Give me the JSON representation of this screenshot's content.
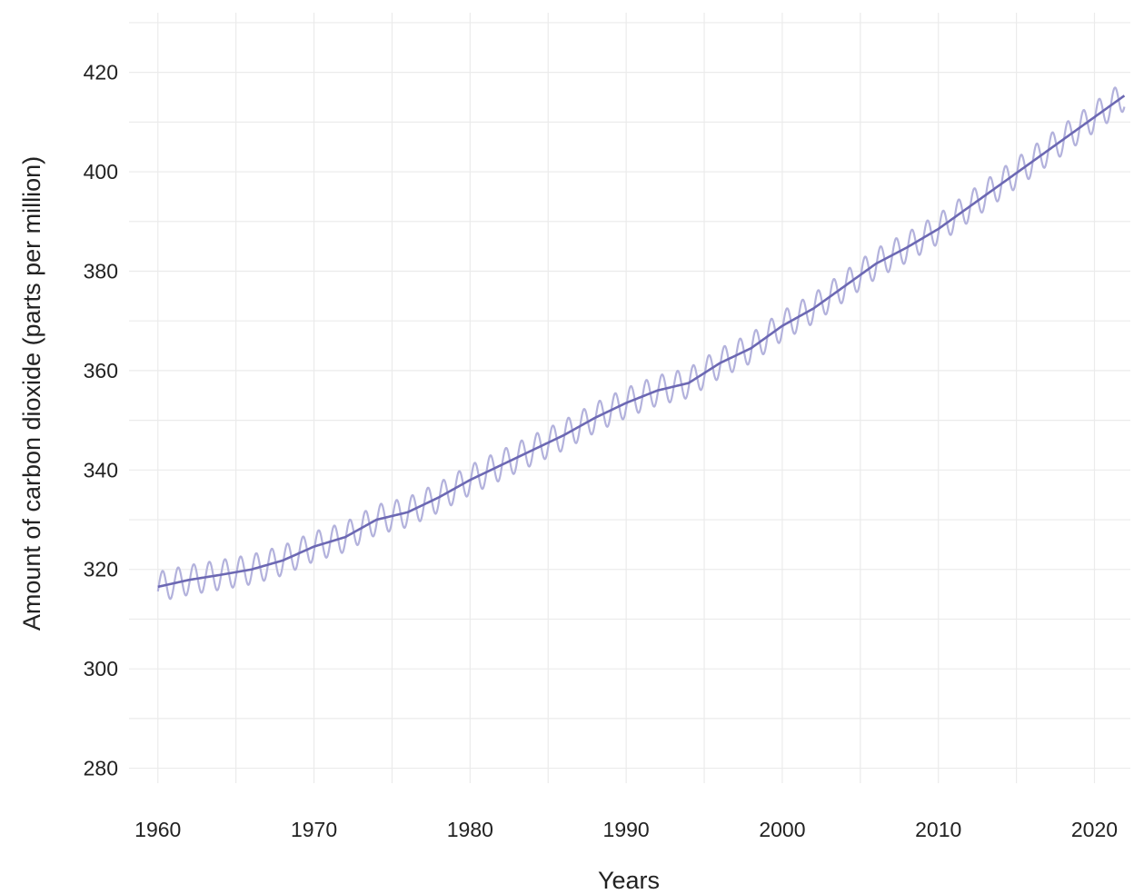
{
  "chart_data": {
    "type": "line",
    "title": "",
    "xlabel": "Years",
    "ylabel": "Amount of carbon dioxide (parts per million)",
    "xlim": [
      1958.5,
      2022.3
    ],
    "ylim": [
      277,
      432
    ],
    "x_ticks": [
      1960,
      1970,
      1980,
      1990,
      2000,
      2010,
      2020
    ],
    "y_ticks": [
      280,
      300,
      320,
      340,
      360,
      380,
      400,
      420
    ],
    "grid": true,
    "legend": "none",
    "seasonal_amplitude_ppm": 3.0,
    "series": [
      {
        "role": "trend",
        "color": "#6c68b3",
        "x": [
          1960,
          1962,
          1964,
          1966,
          1968,
          1970,
          1972,
          1974,
          1976,
          1978,
          1980,
          1982,
          1984,
          1986,
          1988,
          1990,
          1992,
          1994,
          1996,
          1998,
          2000,
          2002,
          2004,
          2006,
          2008,
          2010,
          2012,
          2014,
          2016,
          2018,
          2020,
          2022
        ],
        "y": [
          316.5,
          317.9,
          318.9,
          320.0,
          321.8,
          324.6,
          326.5,
          330.0,
          331.5,
          334.5,
          338.0,
          341.0,
          344.0,
          347.0,
          350.5,
          353.5,
          356.0,
          357.5,
          361.5,
          364.5,
          369.0,
          372.5,
          377.0,
          381.5,
          384.8,
          388.5,
          393.0,
          397.5,
          402.0,
          406.5,
          411.0,
          415.5
        ]
      },
      {
        "role": "monthly",
        "color": "#b3b2dc",
        "note_hidden": ""
      }
    ]
  }
}
